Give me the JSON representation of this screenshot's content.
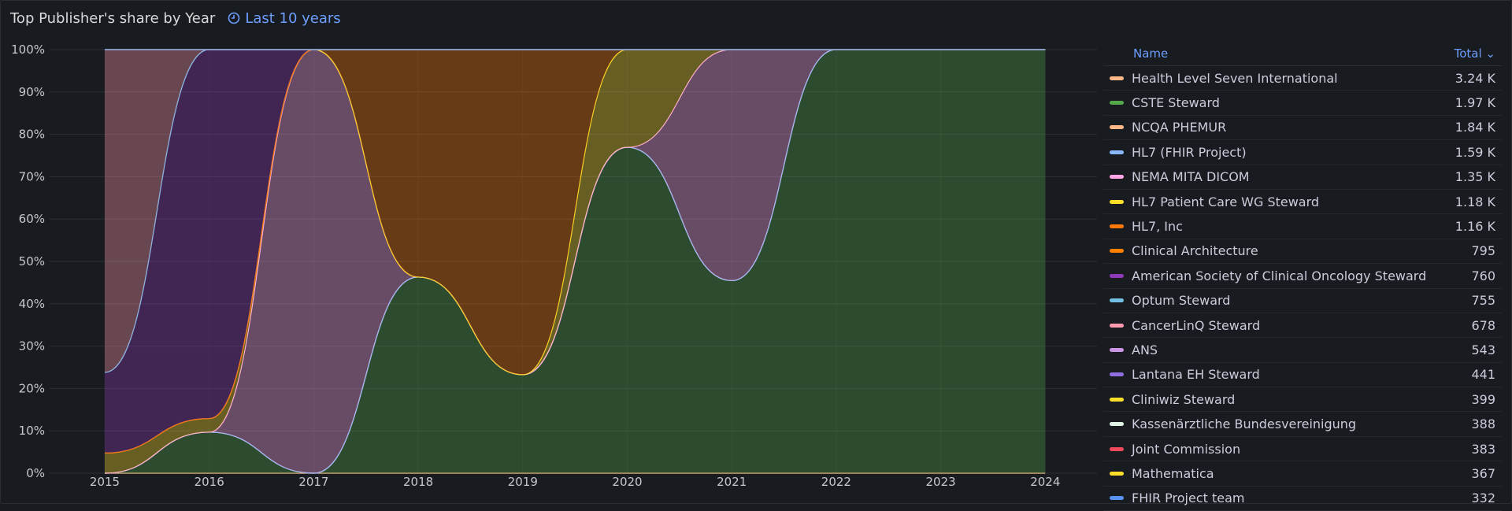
{
  "panel": {
    "title": "Top Publisher's share by Year",
    "time_range": "Last 10 years"
  },
  "legend": {
    "name_header": "Name",
    "total_header": "Total"
  },
  "chart_data": {
    "type": "area",
    "stacked": "percent",
    "x": [
      "2015",
      "2016",
      "2017",
      "2018",
      "2019",
      "2020",
      "2021",
      "2022",
      "2023",
      "2024"
    ],
    "yticks": [
      "0%",
      "10%",
      "20%",
      "30%",
      "40%",
      "50%",
      "60%",
      "70%",
      "80%",
      "90%",
      "100%"
    ],
    "ylim": [
      0,
      100
    ],
    "legend_placement": "right",
    "series": [
      {
        "name": "Health Level Seven International",
        "total": "3.24 K",
        "color": "#ffb886",
        "values": [
          0,
          0,
          0,
          0,
          0,
          0,
          0,
          0,
          0,
          0
        ]
      },
      {
        "name": "CSTE Steward",
        "total": "1.97 K",
        "color": "#56a64b",
        "values": [
          0,
          3,
          0,
          25,
          10,
          10,
          10,
          47,
          17,
          24
        ]
      },
      {
        "name": "NCQA PHEMUR",
        "total": "1.84 K",
        "color": "#ffb886",
        "values": [
          0,
          0,
          0,
          0,
          0,
          0,
          0,
          0,
          0,
          0
        ]
      },
      {
        "name": "HL7 (FHIR Project)",
        "total": "1.59 K",
        "color": "#8ab8ff",
        "values": [
          0,
          0,
          0,
          0,
          0,
          0,
          0,
          0,
          0,
          0
        ]
      },
      {
        "name": "NEMA MITA DICOM",
        "total": "1.35 K",
        "color": "#ffa6e8",
        "values": [
          0,
          0,
          44,
          0,
          0,
          0,
          12,
          0,
          0,
          0
        ]
      },
      {
        "name": "HL7 Patient Care WG Steward",
        "total": "1.18 K",
        "color": "#fade2a",
        "values": [
          2,
          1,
          0,
          0,
          0,
          3,
          0,
          0,
          0,
          0
        ]
      },
      {
        "name": "HL7, Inc",
        "total": "1.16 K",
        "color": "#ff780a",
        "values": [
          0,
          0,
          0,
          29,
          33,
          0,
          0,
          0,
          0,
          0
        ]
      },
      {
        "name": "Clinical Architecture",
        "total": "795",
        "color": "#ff7f00",
        "values": [
          0,
          0,
          0,
          0,
          0,
          0,
          0,
          0,
          0,
          0
        ]
      },
      {
        "name": "American Society of Clinical Oncology Steward",
        "total": "760",
        "color": "#8f3bb8",
        "values": [
          8,
          27,
          0,
          0,
          0,
          0,
          0,
          0,
          0,
          0
        ]
      },
      {
        "name": "Optum Steward",
        "total": "755",
        "color": "#73bfe4",
        "values": [
          0,
          0,
          0,
          0,
          0,
          0,
          0,
          0,
          0,
          0
        ]
      },
      {
        "name": "CancerLinQ Steward",
        "total": "678",
        "color": "#ff9ab0",
        "values": [
          32,
          0,
          0,
          0,
          0,
          0,
          0,
          0,
          0,
          0
        ]
      },
      {
        "name": "ANS",
        "total": "543",
        "color": "#ca95e5",
        "values": [
          0,
          0,
          0,
          0,
          0,
          0,
          0,
          0,
          0,
          0
        ]
      },
      {
        "name": "Lantana EH Steward",
        "total": "441",
        "color": "#8f6fe0",
        "values": [
          0,
          0,
          0,
          0,
          0,
          0,
          0,
          0,
          0,
          0
        ]
      },
      {
        "name": "Cliniwiz Steward",
        "total": "399",
        "color": "#fade2a",
        "values": [
          0,
          0,
          0,
          0,
          0,
          0,
          0,
          0,
          0,
          0
        ]
      },
      {
        "name": "Kassenärztliche Bundesvereinigung",
        "total": "388",
        "color": "#e0f2e6",
        "values": [
          0,
          0,
          0,
          0,
          0,
          0,
          0,
          0,
          0,
          0
        ]
      },
      {
        "name": "Joint Commission",
        "total": "383",
        "color": "#f2495c",
        "values": [
          0,
          0,
          0,
          0,
          0,
          0,
          0,
          0,
          0,
          0
        ]
      },
      {
        "name": "Mathematica",
        "total": "367",
        "color": "#fade2a",
        "values": [
          0,
          0,
          0,
          0,
          0,
          0,
          0,
          0,
          0,
          0
        ]
      },
      {
        "name": "FHIR Project team",
        "total": "332",
        "color": "#5794f2",
        "values": [
          0,
          0,
          0,
          0,
          0,
          0,
          0,
          0,
          0,
          0
        ]
      }
    ]
  }
}
